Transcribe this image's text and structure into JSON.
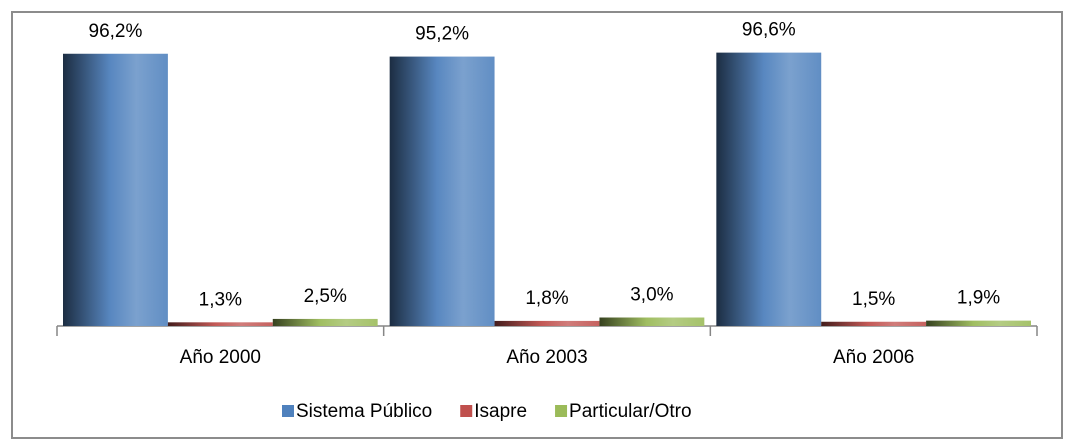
{
  "chart_data": {
    "type": "bar",
    "categories": [
      "Año 2000",
      "Año 2003",
      "Año 2006"
    ],
    "series": [
      {
        "name": "Sistema Público",
        "color": "#4f81bd",
        "values": [
          96.2,
          95.2,
          96.6
        ],
        "value_labels": [
          "96,2%",
          "95,2%",
          "96,6%"
        ]
      },
      {
        "name": "Isapre",
        "color": "#c0504d",
        "values": [
          1.3,
          1.8,
          1.5
        ],
        "value_labels": [
          "1,3%",
          "1,8%",
          "1,5%"
        ]
      },
      {
        "name": "Particular/Otro",
        "color": "#9bbb59",
        "values": [
          2.5,
          3.0,
          1.9
        ],
        "value_labels": [
          "2,5%",
          "3,0%",
          "1,9%"
        ]
      }
    ],
    "ylim": [
      0,
      100
    ],
    "legend": "bottom"
  }
}
